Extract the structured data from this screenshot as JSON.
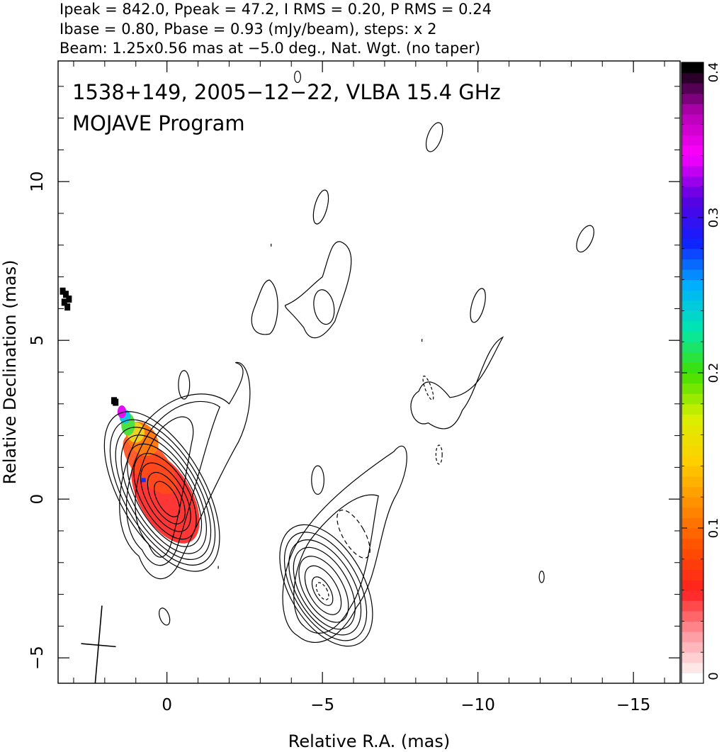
{
  "header": {
    "line1": "Ipeak = 842.0, Ppeak = 47.2, I RMS = 0.20, P RMS = 0.24",
    "line2": "Ibase = 0.80, Pbase = 0.93 (mJy/beam), steps: x 2",
    "line3": "Beam: 1.25x0.56 mas at −5.0 deg., Nat. Wgt. (no taper)"
  },
  "chart_data": {
    "type": "heatmap",
    "title": "1538+149, 2005−12−22, VLBA 15.4 GHz",
    "subtitle": "MOJAVE Program",
    "xlabel": "Relative R.A. (mas)",
    "ylabel": "Relative Declination (mas)",
    "xlim": [
      3.5,
      -16.5
    ],
    "ylim": [
      -5.8,
      13.8
    ],
    "x_reversed": true,
    "x_ticks": [
      0,
      -5,
      -10,
      -15
    ],
    "x_tick_labels": [
      "0",
      "−5",
      "−10",
      "−15"
    ],
    "y_ticks": [
      -5,
      0,
      5,
      10
    ],
    "y_tick_labels": [
      "−5",
      "0",
      "5",
      "10"
    ],
    "colorbar": {
      "range": [
        0,
        0.4
      ],
      "tick_values": [
        0,
        0.1,
        0.2,
        0.3,
        0.4
      ],
      "tick_labels": [
        "0",
        "0.1",
        "0.2",
        "0.3",
        "0.4"
      ],
      "colors": [
        "#ffffff",
        "#ff9aa0",
        "#ff2020",
        "#ff5000",
        "#ff9000",
        "#ffd000",
        "#d8f000",
        "#40e000",
        "#00e8b0",
        "#00b0ff",
        "#1020ff",
        "#5a00e0",
        "#ff00ff",
        "#b000b0",
        "#000000"
      ]
    },
    "core": {
      "x": 0.0,
      "y": 0.0,
      "position_angle_deg": 30,
      "contour_radii": [
        [
          0.3,
          0.62
        ],
        [
          0.45,
          0.9
        ],
        [
          0.6,
          1.2
        ],
        [
          0.75,
          1.5
        ],
        [
          0.88,
          1.8
        ],
        [
          1.0,
          2.08
        ],
        [
          1.12,
          2.32
        ],
        [
          1.24,
          2.55
        ],
        [
          1.36,
          2.8
        ]
      ]
    },
    "counter_feature": {
      "x": -5.0,
      "y": -2.9,
      "position_angle_deg": 30,
      "contour_radii": [
        [
          0.25,
          0.5
        ],
        [
          0.45,
          0.85
        ],
        [
          0.62,
          1.15
        ],
        [
          0.78,
          1.42
        ],
        [
          0.92,
          1.65
        ],
        [
          1.05,
          1.88
        ],
        [
          1.2,
          2.1
        ]
      ]
    },
    "beam": {
      "x": 2.2,
      "y": -4.6,
      "major_mas": 1.25,
      "minor_mas": 0.56,
      "position_angle_deg": -5.0
    }
  }
}
